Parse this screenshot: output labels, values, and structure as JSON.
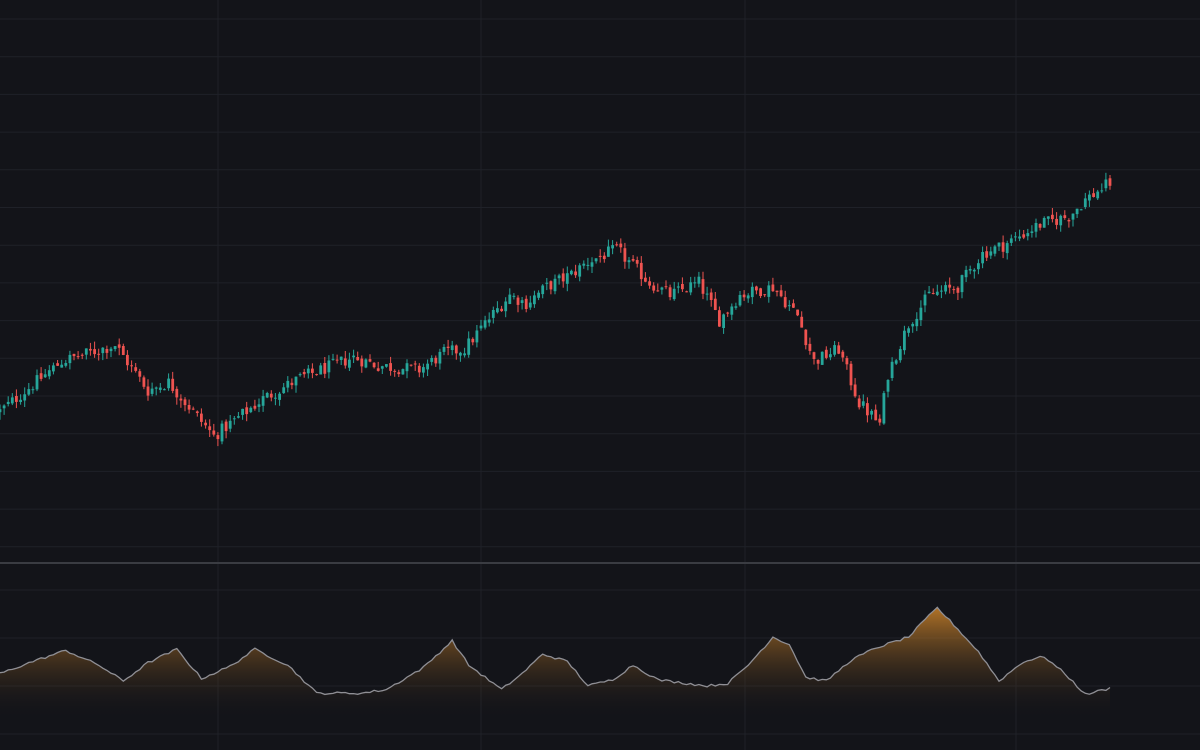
{
  "chart_data": [
    {
      "type": "candlestick",
      "pane": "price",
      "colors": {
        "up": "#26a69a",
        "down": "#ef5350",
        "background": "#131419",
        "grid": "#1f2128",
        "separator": "#3a3c42"
      },
      "grid": true,
      "ylim": [
        0,
        100
      ],
      "anchors": [
        [
          0,
          25
        ],
        [
          15,
          37
        ],
        [
          28,
          41
        ],
        [
          36,
          30
        ],
        [
          41,
          32
        ],
        [
          52,
          19
        ],
        [
          64,
          28
        ],
        [
          73,
          33
        ],
        [
          86,
          38
        ],
        [
          92,
          36
        ],
        [
          102,
          35
        ],
        [
          108,
          39
        ],
        [
          113,
          40
        ],
        [
          117,
          45
        ],
        [
          124,
          53
        ],
        [
          128,
          51
        ],
        [
          133,
          55
        ],
        [
          139,
          58
        ],
        [
          143,
          61
        ],
        [
          150,
          64
        ],
        [
          158,
          56
        ],
        [
          163,
          53
        ],
        [
          170,
          56
        ],
        [
          175,
          47
        ],
        [
          180,
          53
        ],
        [
          188,
          55
        ],
        [
          194,
          48
        ],
        [
          198,
          37
        ],
        [
          204,
          40
        ],
        [
          209,
          27
        ],
        [
          214,
          22
        ],
        [
          216,
          34
        ],
        [
          221,
          46
        ],
        [
          226,
          53
        ],
        [
          233,
          55
        ],
        [
          239,
          63
        ],
        [
          244,
          65
        ],
        [
          253,
          70
        ],
        [
          260,
          72
        ],
        [
          264,
          76
        ],
        [
          270,
          80
        ]
      ]
    },
    {
      "type": "area",
      "pane": "indicator",
      "colors": {
        "line": "#8f8f95",
        "fill_top": "#e8942c",
        "fill_bottom": "#131419"
      },
      "ylim": [
        0,
        100
      ],
      "anchors": [
        [
          0,
          38
        ],
        [
          8,
          48
        ],
        [
          16,
          57
        ],
        [
          24,
          45
        ],
        [
          30,
          32
        ],
        [
          36,
          47
        ],
        [
          43,
          58
        ],
        [
          49,
          34
        ],
        [
          56,
          44
        ],
        [
          62,
          58
        ],
        [
          70,
          45
        ],
        [
          77,
          22
        ],
        [
          88,
          22
        ],
        [
          94,
          25
        ],
        [
          103,
          43
        ],
        [
          110,
          65
        ],
        [
          114,
          45
        ],
        [
          122,
          25
        ],
        [
          127,
          38
        ],
        [
          132,
          54
        ],
        [
          138,
          48
        ],
        [
          143,
          28
        ],
        [
          149,
          33
        ],
        [
          154,
          45
        ],
        [
          160,
          33
        ],
        [
          167,
          30
        ],
        [
          172,
          28
        ],
        [
          177,
          30
        ],
        [
          182,
          45
        ],
        [
          188,
          68
        ],
        [
          192,
          62
        ],
        [
          196,
          35
        ],
        [
          201,
          32
        ],
        [
          207,
          49
        ],
        [
          213,
          59
        ],
        [
          221,
          68
        ],
        [
          225,
          82
        ],
        [
          228,
          92
        ],
        [
          232,
          78
        ],
        [
          238,
          56
        ],
        [
          243,
          32
        ],
        [
          249,
          48
        ],
        [
          254,
          52
        ],
        [
          259,
          38
        ],
        [
          264,
          21
        ],
        [
          270,
          26
        ]
      ]
    }
  ]
}
